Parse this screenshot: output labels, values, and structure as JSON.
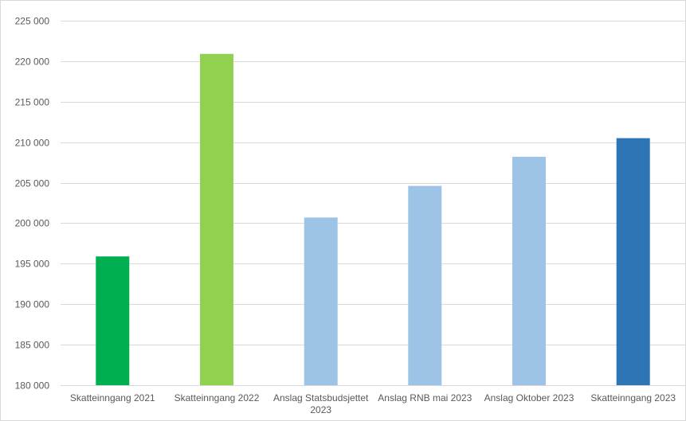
{
  "chart_data": {
    "type": "bar",
    "title": "",
    "xlabel": "",
    "ylabel": "",
    "categories": [
      "Skatteinngang 2021",
      "Skatteinngang 2022",
      "Anslag Statsbudsjettet 2023",
      "Anslag RNB mai 2023",
      "Anslag Oktober 2023",
      "Skatteinngang 2023"
    ],
    "category_lines": [
      [
        "Skatteinngang 2021"
      ],
      [
        "Skatteinngang 2022"
      ],
      [
        "Anslag Statsbudsjettet",
        "2023"
      ],
      [
        "Anslag RNB mai 2023"
      ],
      [
        "Anslag Oktober 2023"
      ],
      [
        "Skatteinngang 2023"
      ]
    ],
    "values": [
      195900,
      220900,
      200700,
      204600,
      208200,
      210500
    ],
    "colors": [
      "#00b050",
      "#92d050",
      "#9dc3e6",
      "#9dc3e6",
      "#9dc3e6",
      "#2e75b6"
    ],
    "ylim": [
      180000,
      225000
    ],
    "yticks": [
      180000,
      185000,
      190000,
      195000,
      200000,
      205000,
      210000,
      215000,
      220000,
      225000
    ],
    "ytick_labels": [
      "180 000",
      "185 000",
      "190 000",
      "195 000",
      "200 000",
      "205 000",
      "210 000",
      "215 000",
      "220 000",
      "225 000"
    ],
    "grid": true,
    "legend": "none"
  }
}
